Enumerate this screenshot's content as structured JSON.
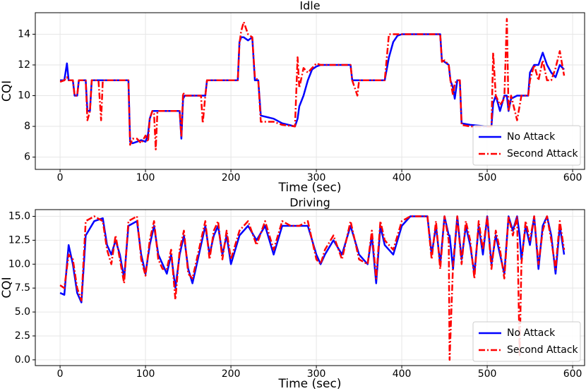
{
  "chart_data": [
    {
      "type": "line",
      "title": "Idle",
      "xlabel": "Time (sec)",
      "ylabel": "CQI",
      "x": [
        0,
        5,
        8,
        10,
        15,
        17,
        20,
        22,
        30,
        32,
        35,
        37,
        45,
        48,
        50,
        80,
        82,
        85,
        90,
        95,
        100,
        103,
        105,
        108,
        110,
        112,
        114,
        140,
        142,
        144,
        146,
        165,
        167,
        170,
        172,
        208,
        210,
        212,
        215,
        220,
        225,
        228,
        232,
        235,
        250,
        260,
        275,
        278,
        280,
        285,
        290,
        295,
        300,
        305,
        340,
        342,
        348,
        350,
        380,
        385,
        390,
        395,
        400,
        445,
        447,
        450,
        455,
        457,
        460,
        462,
        465,
        468,
        470,
        480,
        500,
        505,
        507,
        510,
        515,
        520,
        523,
        525,
        528,
        535,
        540,
        548,
        550,
        555,
        560,
        565,
        570,
        575,
        580,
        585,
        590
      ],
      "series": [
        {
          "name": "No Attack",
          "color": "#0000ff",
          "linestyle": "solid",
          "values": [
            11,
            11,
            12.1,
            11,
            11,
            10,
            10,
            11,
            11,
            9,
            9,
            11,
            11,
            11,
            11,
            11,
            7,
            6.9,
            7,
            7.1,
            7,
            7.5,
            8.5,
            9,
            9,
            9,
            9,
            9,
            7.2,
            9.8,
            10,
            10,
            10,
            10,
            11,
            11,
            13.5,
            13.8,
            13.8,
            13.6,
            13.8,
            11,
            11,
            8.7,
            8.5,
            8.2,
            8,
            8.5,
            9.3,
            10,
            11,
            11.7,
            11.9,
            12,
            12,
            11,
            11,
            11,
            11,
            12.5,
            13.5,
            13.9,
            14,
            14,
            12.3,
            12.2,
            12,
            11,
            10.5,
            9.8,
            11,
            11,
            8.2,
            8.1,
            8,
            8,
            9.5,
            10,
            9,
            10,
            10,
            9,
            9.8,
            10,
            10,
            10,
            11.5,
            12,
            12,
            12.8,
            12,
            11.5,
            11.2,
            12,
            11.7
          ]
        },
        {
          "name": "Second Attack",
          "color": "#ff0000",
          "linestyle": "dashdot",
          "values": [
            10.9,
            11,
            11.2,
            11,
            11,
            10,
            10,
            11,
            11,
            8.4,
            9,
            11,
            11,
            8.4,
            11,
            11,
            6.8,
            7.2,
            7.2,
            6.9,
            7.4,
            7,
            8.5,
            9,
            8.8,
            6.5,
            9,
            9,
            7.3,
            10.2,
            10,
            10,
            8.2,
            10,
            11,
            11,
            13.4,
            14.2,
            14.8,
            14,
            13.8,
            11.2,
            11,
            8.3,
            8.3,
            8.1,
            8,
            12.5,
            10.5,
            11.8,
            11.5,
            11.8,
            12.1,
            12,
            12,
            11,
            10,
            11,
            11,
            14,
            14,
            14,
            14,
            14,
            12.2,
            12.3,
            12,
            11,
            10,
            10.8,
            11,
            11,
            8.1,
            8,
            8,
            8,
            12.8,
            10,
            9.4,
            9.8,
            15,
            9,
            10,
            8.4,
            10,
            10,
            11,
            12,
            11,
            12.3,
            11,
            11,
            11.8,
            12.9,
            11.3
          ]
        }
      ],
      "xlim": [
        -29,
        614
      ],
      "ylim": [
        5.2,
        15.4
      ],
      "xticks": [
        0,
        100,
        200,
        300,
        400,
        500,
        600
      ],
      "yticks": [
        6,
        8,
        10,
        12,
        14
      ],
      "grid": true,
      "legend": "lower right"
    },
    {
      "type": "line",
      "title": "Driving",
      "xlabel": "Time (sec)",
      "ylabel": "CQI",
      "x": [
        0,
        5,
        10,
        15,
        20,
        25,
        30,
        40,
        50,
        55,
        60,
        65,
        70,
        75,
        80,
        90,
        95,
        100,
        105,
        110,
        115,
        120,
        125,
        130,
        135,
        140,
        145,
        150,
        155,
        160,
        165,
        170,
        175,
        180,
        185,
        190,
        195,
        200,
        210,
        220,
        230,
        240,
        250,
        260,
        270,
        280,
        290,
        300,
        305,
        310,
        320,
        330,
        340,
        350,
        360,
        365,
        370,
        375,
        380,
        390,
        400,
        410,
        420,
        430,
        435,
        440,
        445,
        450,
        455,
        456,
        460,
        465,
        470,
        475,
        480,
        485,
        490,
        495,
        500,
        505,
        510,
        515,
        520,
        525,
        530,
        535,
        538,
        540,
        545,
        550,
        555,
        560,
        565,
        570,
        575,
        580,
        585,
        590
      ],
      "series": [
        {
          "name": "No Attack",
          "color": "#0000ff",
          "linestyle": "solid",
          "values": [
            7,
            6.8,
            12,
            10,
            7,
            6,
            13,
            14.5,
            14.8,
            12,
            11,
            12.5,
            11,
            8.5,
            14,
            14.5,
            11,
            9,
            12,
            14,
            11,
            10,
            9,
            11,
            7.5,
            11,
            13,
            9.5,
            8,
            10,
            12,
            14,
            11,
            13,
            14,
            11,
            13,
            10,
            13,
            14,
            12.5,
            14,
            11,
            14,
            14,
            14,
            14,
            11,
            10,
            11,
            12.5,
            11,
            14,
            11,
            10,
            13,
            8,
            14,
            12,
            11,
            14,
            15,
            15,
            15,
            11,
            14,
            10,
            15,
            13,
            13,
            9.5,
            15,
            10.5,
            14,
            12,
            9,
            14,
            11,
            15,
            10,
            13,
            11,
            9,
            15,
            13.5,
            15,
            13,
            10.5,
            14,
            12,
            15,
            9.5,
            14,
            15,
            13,
            9,
            14,
            11
          ]
        },
        {
          "name": "Second Attack",
          "color": "#ff0000",
          "linestyle": "dashdot",
          "values": [
            7.8,
            7.5,
            11,
            10.5,
            7.5,
            6.2,
            14.5,
            15,
            14.5,
            11.5,
            10,
            13,
            10.5,
            8,
            14.5,
            15,
            10.5,
            8.8,
            12.5,
            14.5,
            10.5,
            9.5,
            9.5,
            11.5,
            6.3,
            11.5,
            13.5,
            9,
            8.5,
            10.5,
            12.5,
            14.5,
            10.5,
            13.5,
            14.5,
            10.5,
            13.5,
            10.5,
            13.5,
            14.5,
            12,
            14.5,
            11.5,
            14.5,
            14,
            14,
            14.5,
            10.5,
            10,
            11.5,
            13,
            10.5,
            14.5,
            10.5,
            10,
            13.5,
            8.5,
            14.5,
            12.5,
            11.5,
            14.5,
            15,
            15,
            15,
            10.5,
            14.5,
            9.5,
            15,
            12.5,
            0,
            10,
            15,
            10,
            14.5,
            12.5,
            8.5,
            14.5,
            11.5,
            15,
            9.5,
            13.5,
            11.5,
            8.5,
            15,
            13,
            15,
            0.5,
            10,
            14.5,
            12.5,
            15,
            10,
            13.5,
            15,
            12.5,
            9.5,
            14.5,
            11.5
          ]
        }
      ],
      "xlim": [
        -29,
        614
      ],
      "ylim": [
        -0.6,
        15.7
      ],
      "xticks": [
        0,
        100,
        200,
        300,
        400,
        500,
        600
      ],
      "yticks": [
        {
          "value": 0,
          "label": "0.0"
        },
        2.5,
        {
          "value": 5,
          "label": "5.0"
        },
        7.5,
        {
          "value": 10,
          "label": "10.0"
        },
        12.5,
        {
          "value": 15,
          "label": "15.0"
        }
      ],
      "grid": true,
      "legend": "lower right"
    }
  ]
}
